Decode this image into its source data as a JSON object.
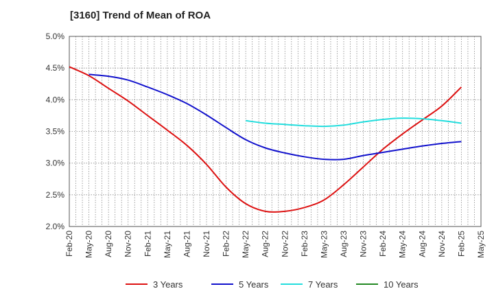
{
  "chart_data": {
    "type": "line",
    "title": "[3160]  Trend of Mean of ROA",
    "xlabel": "",
    "ylabel": "",
    "ylim": [
      2.0,
      5.0
    ],
    "y_ticks": [
      "2.0%",
      "2.5%",
      "3.0%",
      "3.5%",
      "4.0%",
      "4.5%",
      "5.0%"
    ],
    "x_ticks": [
      "Feb-20",
      "May-20",
      "Aug-20",
      "Nov-20",
      "Feb-21",
      "May-21",
      "Aug-21",
      "Nov-21",
      "Feb-22",
      "May-22",
      "Aug-22",
      "Nov-22",
      "Feb-23",
      "May-23",
      "Aug-23",
      "Nov-23",
      "Feb-24",
      "May-24",
      "Aug-24",
      "Nov-24",
      "Feb-25",
      "May-25"
    ],
    "grid": true,
    "legend_position": "bottom",
    "series": [
      {
        "name": "3 Years",
        "color": "#dd1111",
        "start_index": 0,
        "values": [
          4.52,
          4.38,
          4.18,
          3.98,
          3.75,
          3.52,
          3.28,
          2.98,
          2.62,
          2.36,
          2.24,
          2.24,
          2.3,
          2.42,
          2.66,
          2.94,
          3.22,
          3.46,
          3.68,
          3.9,
          4.2
        ]
      },
      {
        "name": "5 Years",
        "color": "#1111cc",
        "start_index": 1,
        "values": [
          4.4,
          4.37,
          4.31,
          4.2,
          4.08,
          3.94,
          3.76,
          3.56,
          3.37,
          3.24,
          3.16,
          3.1,
          3.06,
          3.06,
          3.12,
          3.17,
          3.22,
          3.27,
          3.31,
          3.34
        ]
      },
      {
        "name": "7 Years",
        "color": "#22dddd",
        "start_index": 9,
        "values": [
          3.67,
          3.63,
          3.61,
          3.59,
          3.58,
          3.6,
          3.65,
          3.69,
          3.71,
          3.7,
          3.67,
          3.63
        ]
      },
      {
        "name": "10 Years",
        "color": "#228822",
        "start_index": 0,
        "values": []
      }
    ]
  }
}
